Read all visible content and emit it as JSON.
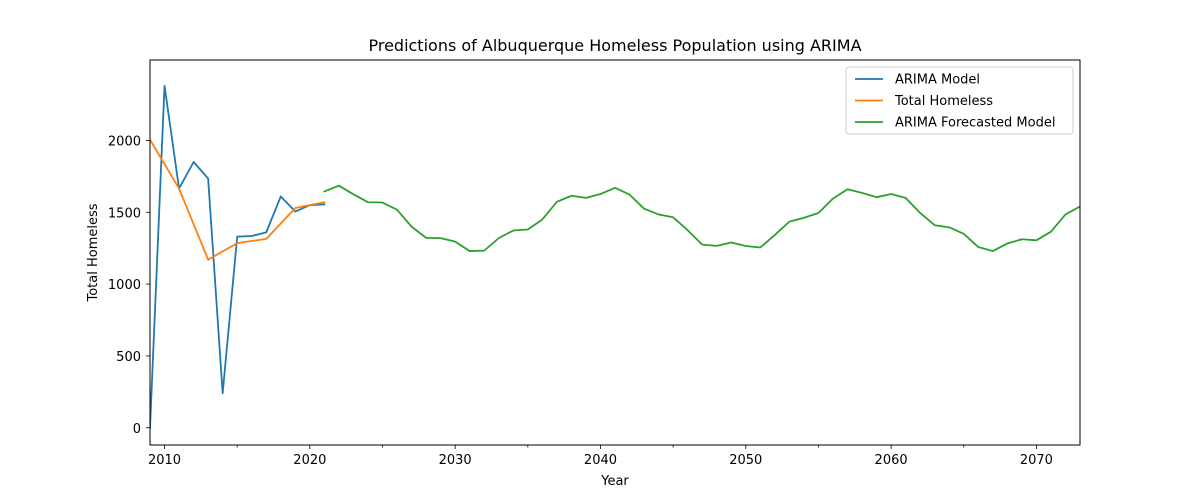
{
  "chart_data": {
    "type": "line",
    "title": "Predictions of Albuquerque Homeless Population using ARIMA",
    "xlabel": "Year",
    "ylabel": "Total Homeless",
    "xlim": [
      2009,
      2073
    ],
    "ylim": [
      -120,
      2560
    ],
    "xticks": [
      2010,
      2020,
      2030,
      2040,
      2050,
      2060,
      2070
    ],
    "yticks": [
      0,
      500,
      1000,
      1500,
      2000
    ],
    "grid": false,
    "legend_position": "top-right",
    "series": [
      {
        "name": "ARIMA Model",
        "color": "#1f77b4",
        "x": [
          2009,
          2010,
          2011,
          2012,
          2013,
          2014,
          2015,
          2016,
          2017,
          2018,
          2019,
          2020,
          2021
        ],
        "y": [
          0,
          2380,
          1665,
          1850,
          1735,
          240,
          1330,
          1335,
          1360,
          1610,
          1505,
          1550,
          1555
        ]
      },
      {
        "name": "Total Homeless",
        "color": "#ff7f0e",
        "x": [
          2009,
          2011,
          2013,
          2015,
          2017,
          2019,
          2021
        ],
        "y": [
          2005,
          1665,
          1170,
          1285,
          1315,
          1530,
          1570
        ]
      },
      {
        "name": "ARIMA Forecasted Model",
        "color": "#2ca02c",
        "x": [
          2021,
          2022,
          2023,
          2024,
          2025,
          2026,
          2027,
          2028,
          2029,
          2030,
          2031,
          2032,
          2033,
          2034,
          2035,
          2036,
          2037,
          2038,
          2039,
          2040,
          2041,
          2042,
          2043,
          2044,
          2045,
          2046,
          2047,
          2048,
          2049,
          2050,
          2051,
          2052,
          2053,
          2054,
          2055,
          2056,
          2057,
          2058,
          2059,
          2060,
          2061,
          2062,
          2063,
          2064,
          2065,
          2066,
          2067,
          2068,
          2069,
          2070,
          2071,
          2072,
          2073
        ],
        "y": [
          1645,
          1685,
          1625,
          1570,
          1568,
          1518,
          1400,
          1322,
          1320,
          1296,
          1230,
          1233,
          1320,
          1373,
          1380,
          1450,
          1573,
          1615,
          1600,
          1627,
          1670,
          1623,
          1525,
          1485,
          1465,
          1375,
          1275,
          1266,
          1290,
          1265,
          1255,
          1342,
          1435,
          1462,
          1495,
          1595,
          1660,
          1635,
          1605,
          1627,
          1600,
          1495,
          1410,
          1395,
          1350,
          1258,
          1230,
          1283,
          1312,
          1305,
          1365,
          1485,
          1540
        ]
      }
    ]
  }
}
